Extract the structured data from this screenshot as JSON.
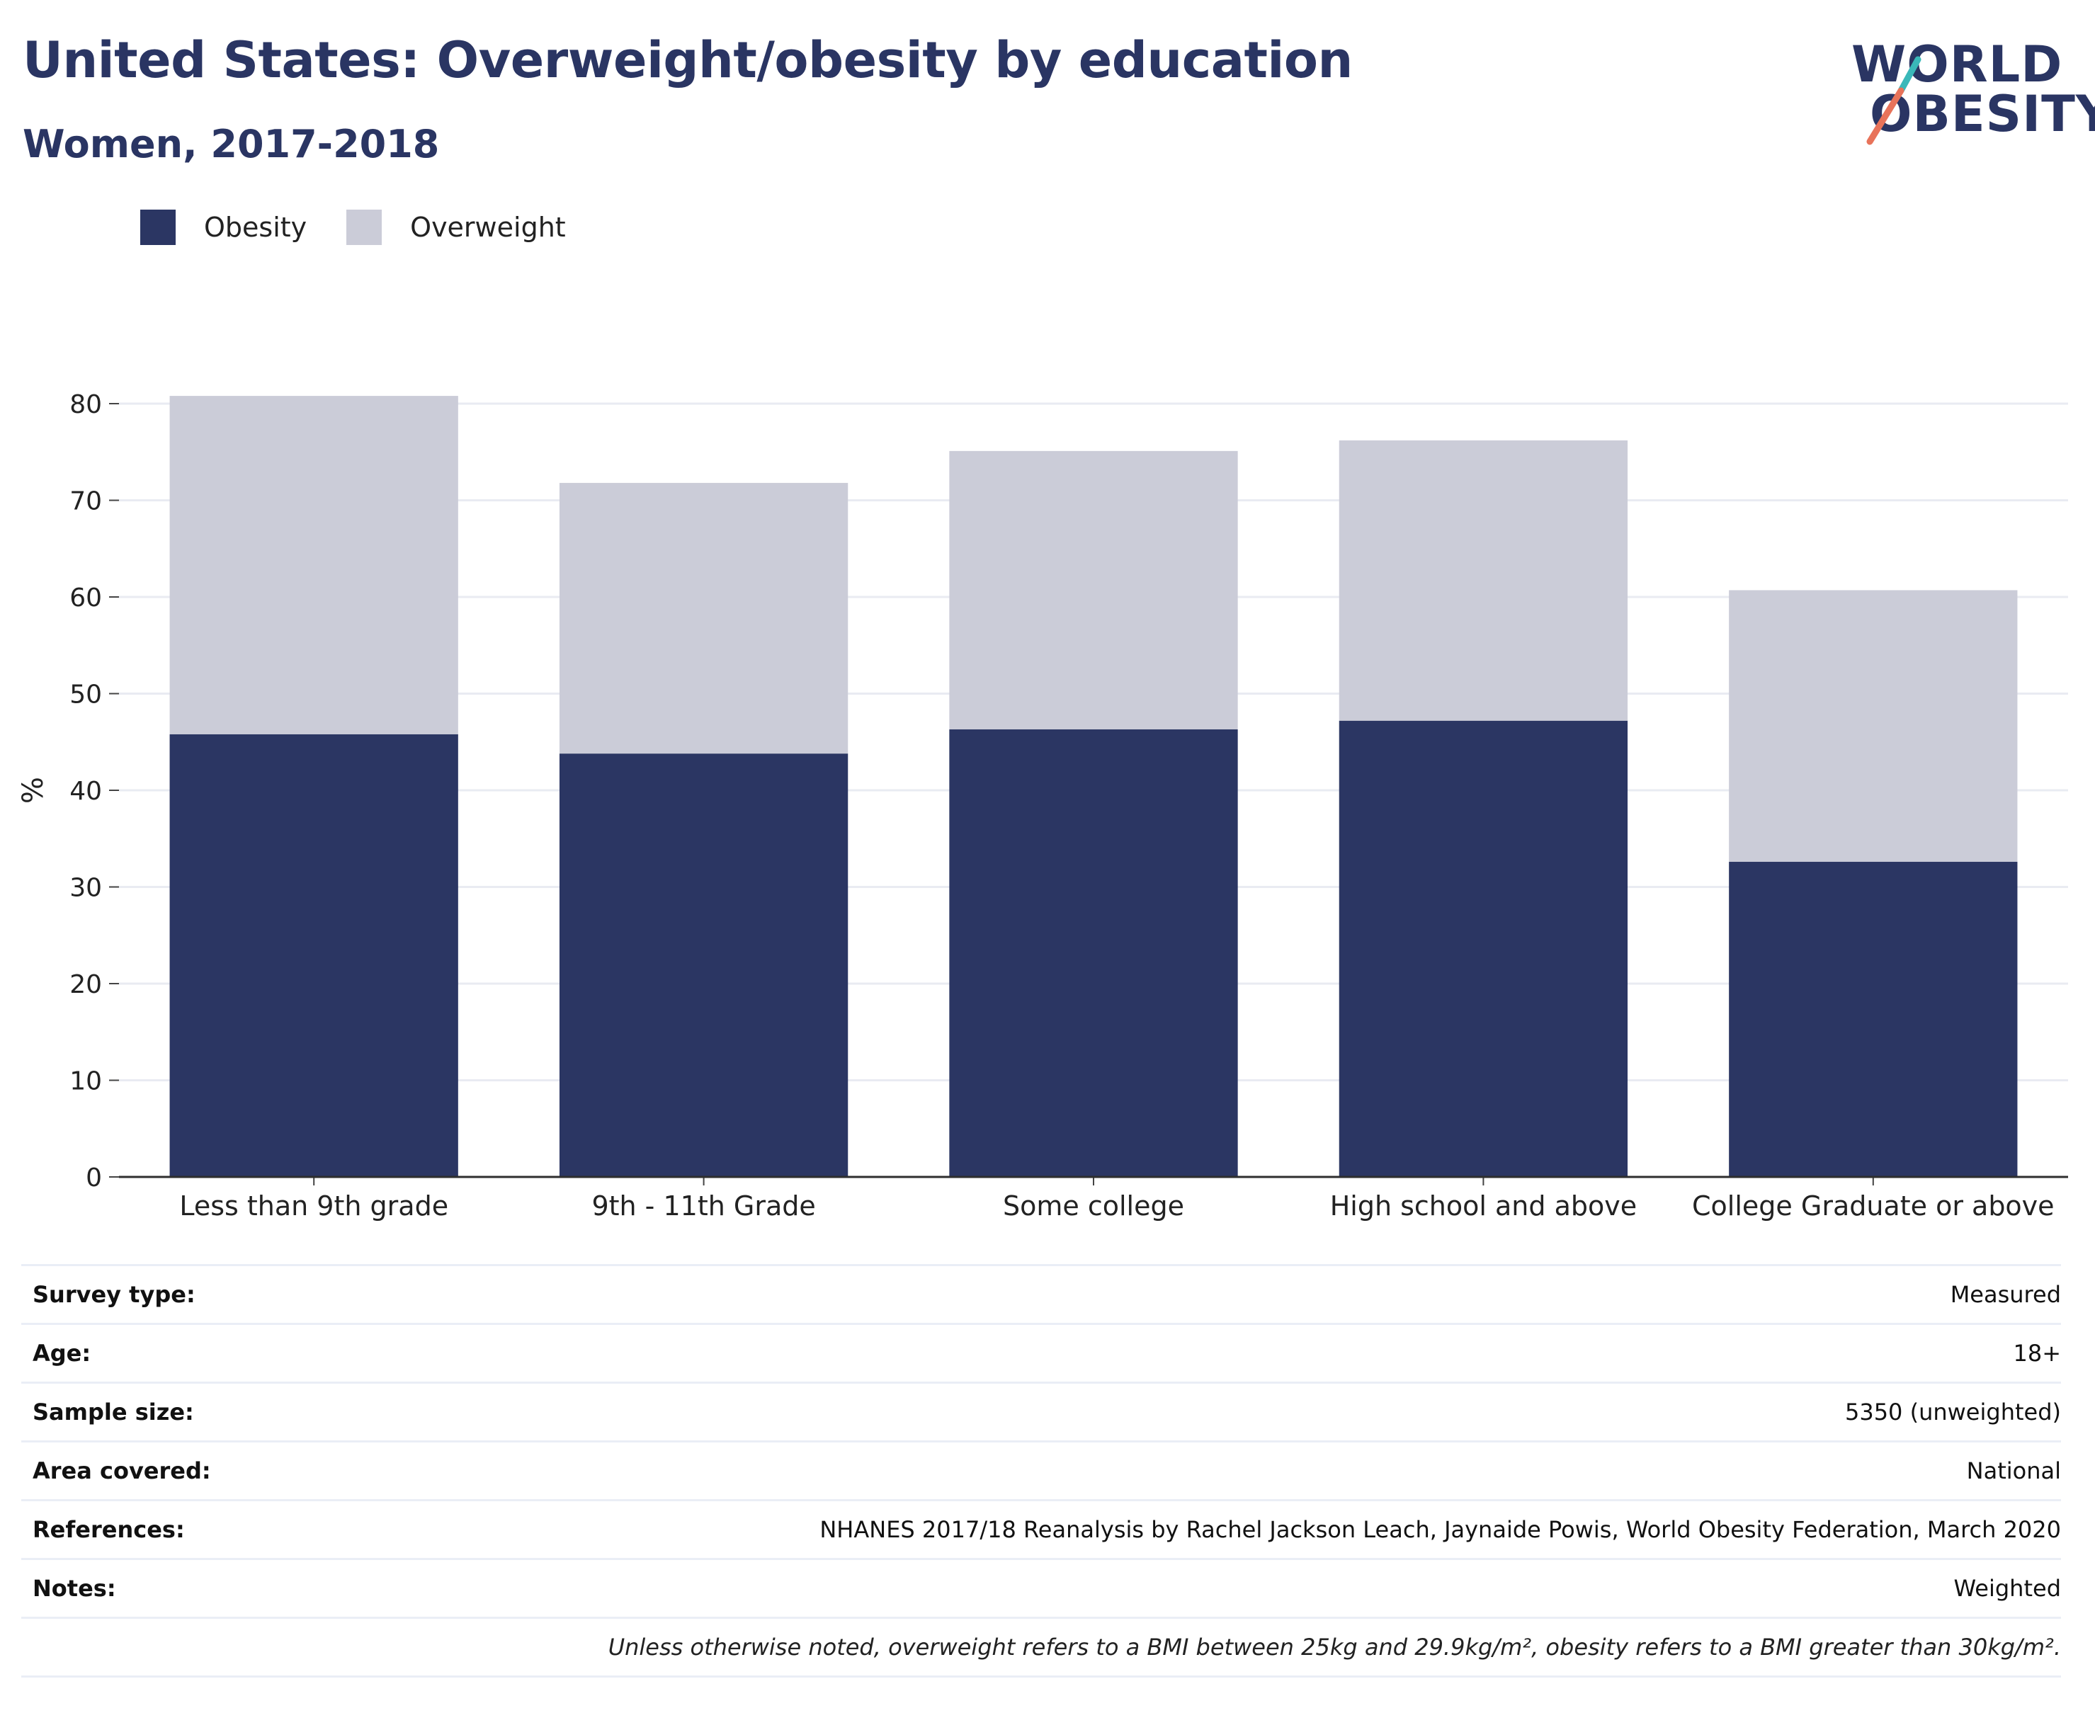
{
  "header": {
    "title": "United States: Overweight/obesity by education",
    "subtitle": "Women, 2017-2018"
  },
  "logo": {
    "line1": "WORLD",
    "line2": "OBESITY",
    "slash_colors": [
      "#3ab8b9",
      "#e8735a"
    ]
  },
  "legend": [
    {
      "name": "Obesity",
      "color": "#2b3663"
    },
    {
      "name": "Overweight",
      "color": "#cbccd8"
    }
  ],
  "chart_data": {
    "type": "bar",
    "stacked": true,
    "categories": [
      "Less than 9th grade",
      "9th - 11th Grade",
      "Some college",
      "High school and above",
      "College Graduate or above"
    ],
    "series": [
      {
        "name": "Obesity",
        "color": "#2b3663",
        "values": [
          45.8,
          43.8,
          46.3,
          47.2,
          32.6
        ]
      },
      {
        "name": "Overweight",
        "color": "#cbccd8",
        "values": [
          35.0,
          28.0,
          28.8,
          29.0,
          28.1
        ]
      }
    ],
    "ylabel": "%",
    "ylim": [
      0,
      80
    ],
    "yticks": [
      0,
      10,
      20,
      30,
      40,
      50,
      60,
      70,
      80
    ],
    "grid": true,
    "legend_position": "top-left"
  },
  "meta": {
    "rows": [
      {
        "label": "Survey type:",
        "value": "Measured"
      },
      {
        "label": "Age:",
        "value": "18+"
      },
      {
        "label": "Sample size:",
        "value": "5350 (unweighted)"
      },
      {
        "label": "Area covered:",
        "value": "National"
      },
      {
        "label": "References:",
        "value": "NHANES 2017/18 Reanalysis by Rachel Jackson Leach, Jaynaide Powis, World Obesity Federation, March 2020"
      },
      {
        "label": "Notes:",
        "value": "Weighted"
      }
    ],
    "footnote": "Unless otherwise noted, overweight refers to a BMI between 25kg and 29.9kg/m², obesity refers to a BMI greater than 30kg/m²."
  }
}
